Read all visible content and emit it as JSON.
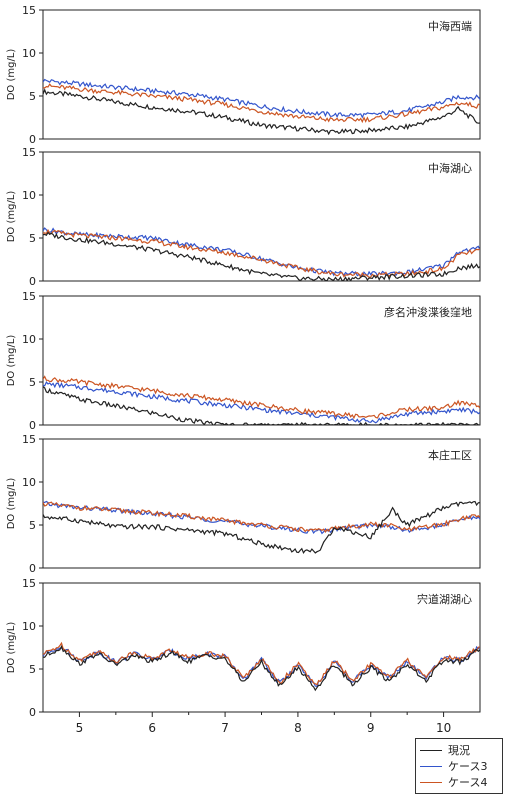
{
  "chart_data": [
    {
      "type": "line",
      "title": "中海西端",
      "ylabel": "DO (mg/L)",
      "ylim": [
        0,
        15
      ],
      "yticks": [
        0,
        5,
        10,
        15
      ],
      "x": [
        4.5,
        5,
        5.5,
        6,
        6.5,
        7,
        7.5,
        8,
        8.5,
        9,
        9.5,
        10,
        10.2,
        10.5
      ],
      "series": [
        {
          "name": "現況",
          "values": [
            5.5,
            5.0,
            4.3,
            3.7,
            3.2,
            2.5,
            1.6,
            1.2,
            0.8,
            1.0,
            1.4,
            2.6,
            3.5,
            1.8
          ]
        },
        {
          "name": "ケース3",
          "values": [
            6.8,
            6.4,
            6.0,
            5.6,
            5.2,
            4.6,
            3.8,
            3.2,
            2.8,
            2.8,
            3.3,
            4.3,
            4.9,
            4.8
          ]
        },
        {
          "name": "ケース4",
          "values": [
            6.2,
            5.8,
            5.4,
            5.0,
            4.6,
            4.0,
            3.2,
            2.6,
            2.2,
            2.3,
            2.9,
            3.7,
            4.2,
            3.8
          ]
        }
      ]
    },
    {
      "type": "line",
      "title": "中海湖心",
      "ylabel": "DO (mg/L)",
      "ylim": [
        0,
        15
      ],
      "yticks": [
        0,
        5,
        10,
        15
      ],
      "x": [
        4.5,
        5,
        5.5,
        6,
        6.5,
        7,
        7.5,
        8,
        8.5,
        9,
        9.5,
        10,
        10.2,
        10.5
      ],
      "series": [
        {
          "name": "現況",
          "values": [
            5.5,
            4.8,
            4.3,
            3.6,
            2.8,
            1.8,
            0.8,
            0.3,
            0.2,
            0.4,
            0.6,
            0.8,
            1.5,
            1.8
          ]
        },
        {
          "name": "ケース3",
          "values": [
            6.0,
            5.4,
            5.2,
            5.0,
            4.2,
            3.6,
            2.6,
            1.5,
            0.9,
            0.8,
            1.0,
            1.8,
            3.4,
            3.8
          ]
        },
        {
          "name": "ケース4",
          "values": [
            5.8,
            5.3,
            5.0,
            4.6,
            3.9,
            3.3,
            2.5,
            1.5,
            0.8,
            0.7,
            0.8,
            1.4,
            3.0,
            3.6
          ]
        }
      ]
    },
    {
      "type": "line",
      "title": "彦名沖浚渫後窪地",
      "ylabel": "DO (mg/L)",
      "ylim": [
        0,
        15
      ],
      "yticks": [
        0,
        5,
        10,
        15
      ],
      "x": [
        4.5,
        5,
        5.5,
        6,
        6.5,
        7,
        7.5,
        8,
        8.5,
        9,
        9.5,
        10,
        10.2,
        10.5
      ],
      "series": [
        {
          "name": "現況",
          "values": [
            4.2,
            3.0,
            2.2,
            1.4,
            0.5,
            0.0,
            0.0,
            0.0,
            0.0,
            0.0,
            0.0,
            0.0,
            0.0,
            0.0
          ]
        },
        {
          "name": "ケース3",
          "values": [
            4.8,
            4.4,
            3.9,
            3.3,
            2.8,
            2.3,
            1.8,
            1.3,
            0.9,
            0.4,
            1.3,
            1.6,
            1.8,
            1.5
          ]
        },
        {
          "name": "ケース4",
          "values": [
            5.4,
            5.0,
            4.5,
            4.0,
            3.4,
            2.9,
            2.3,
            1.7,
            1.3,
            0.9,
            1.8,
            2.0,
            2.6,
            2.2
          ]
        }
      ]
    },
    {
      "type": "line",
      "title": "本庄工区",
      "ylabel": "DO (mg/L)",
      "ylim": [
        0,
        15
      ],
      "yticks": [
        0,
        5,
        10,
        15
      ],
      "x": [
        4.5,
        5,
        5.5,
        6,
        6.5,
        7,
        7.5,
        8,
        8.3,
        8.5,
        9,
        9.3,
        9.5,
        10,
        10.3,
        10.5
      ],
      "series": [
        {
          "name": "現況",
          "values": [
            6.0,
            5.5,
            4.8,
            4.8,
            4.4,
            4.0,
            2.8,
            2.0,
            2.0,
            4.8,
            3.6,
            6.8,
            5.0,
            7.0,
            7.6,
            7.4
          ]
        },
        {
          "name": "ケース3",
          "values": [
            7.5,
            7.0,
            6.7,
            6.3,
            5.9,
            5.4,
            4.9,
            4.4,
            4.2,
            4.5,
            5.0,
            4.8,
            4.3,
            5.0,
            5.8,
            5.9
          ]
        },
        {
          "name": "ケース4",
          "values": [
            7.5,
            7.0,
            6.7,
            6.4,
            6.0,
            5.5,
            5.0,
            4.5,
            4.3,
            4.6,
            5.1,
            4.9,
            4.4,
            5.1,
            5.9,
            6.0
          ]
        }
      ]
    },
    {
      "type": "line",
      "title": "宍道湖湖心",
      "ylabel": "DO (mg/L)",
      "ylim": [
        0,
        15
      ],
      "yticks": [
        0,
        5,
        10,
        15
      ],
      "x": [
        4.5,
        4.75,
        5,
        5.25,
        5.5,
        5.75,
        6,
        6.25,
        6.5,
        6.75,
        7,
        7.25,
        7.5,
        7.75,
        8,
        8.25,
        8.5,
        8.75,
        9,
        9.25,
        9.5,
        9.75,
        10,
        10.25,
        10.5
      ],
      "series": [
        {
          "name": "現況",
          "values": [
            6.4,
            7.5,
            5.6,
            6.8,
            5.5,
            6.6,
            5.8,
            6.9,
            5.9,
            6.6,
            6.2,
            3.5,
            5.8,
            3.0,
            5.2,
            2.6,
            5.6,
            3.2,
            5.2,
            3.6,
            5.6,
            3.6,
            6.0,
            5.8,
            7.4
          ]
        },
        {
          "name": "ケース3",
          "values": [
            6.6,
            7.7,
            5.9,
            7.0,
            5.8,
            6.8,
            6.1,
            7.1,
            6.2,
            6.8,
            6.4,
            3.8,
            6.1,
            3.3,
            5.5,
            2.9,
            5.9,
            3.5,
            5.5,
            3.9,
            5.9,
            3.9,
            6.3,
            6.0,
            7.6
          ]
        },
        {
          "name": "ケース4",
          "values": [
            6.7,
            7.8,
            6.0,
            7.1,
            5.9,
            6.9,
            6.2,
            7.2,
            6.3,
            6.9,
            6.5,
            3.9,
            6.2,
            3.4,
            5.6,
            3.0,
            6.0,
            3.6,
            5.6,
            4.0,
            6.0,
            4.0,
            6.4,
            6.1,
            7.7
          ]
        }
      ]
    }
  ],
  "x_axis": {
    "range": [
      4.5,
      10.5
    ],
    "labels": [
      {
        "value": 5,
        "text": "5"
      },
      {
        "value": 6,
        "text": "6"
      },
      {
        "value": 7,
        "text": "7"
      },
      {
        "value": 8,
        "text": "8"
      },
      {
        "value": 9,
        "text": "9"
      },
      {
        "value": 10,
        "text": "10"
      }
    ]
  },
  "legend": {
    "position": "bottom-right",
    "items": [
      {
        "label": "現況",
        "color": "#222222"
      },
      {
        "label": "ケース3",
        "color": "#3355cc"
      },
      {
        "label": "ケース4",
        "color": "#cc5522"
      }
    ]
  }
}
